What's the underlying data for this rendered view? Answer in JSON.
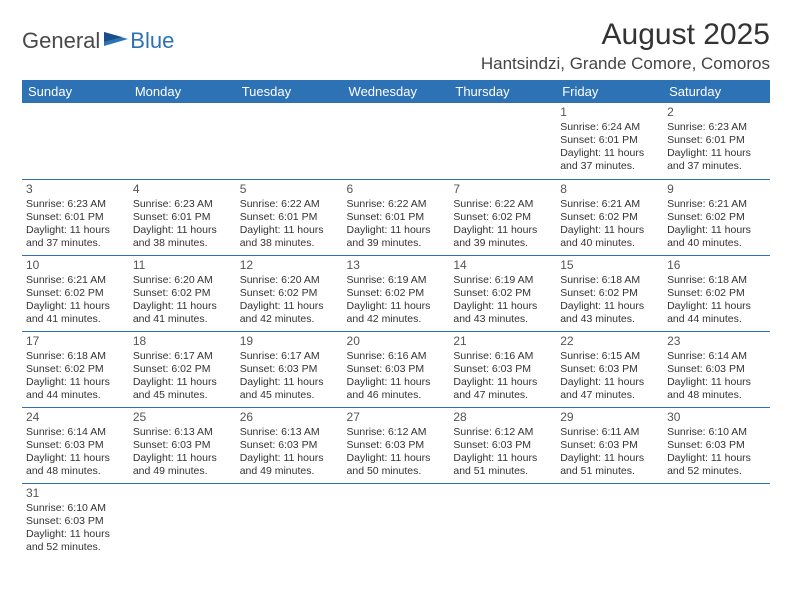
{
  "logo": {
    "part1": "General",
    "part2": "Blue"
  },
  "header": {
    "title": "August 2025",
    "location": "Hantsindzi, Grande Comore, Comoros"
  },
  "colors": {
    "header_bg": "#2d72b5",
    "header_text": "#ffffff",
    "cell_border": "#2d72b5",
    "text": "#333333",
    "logo_gray": "#4a4a4a",
    "logo_blue": "#2d72b5"
  },
  "fonts": {
    "title_size": 30,
    "location_size": 17,
    "dayheader_size": 13,
    "cell_size": 10.5,
    "daynum_size": 12
  },
  "calendar": {
    "type": "table",
    "columns": [
      "Sunday",
      "Monday",
      "Tuesday",
      "Wednesday",
      "Thursday",
      "Friday",
      "Saturday"
    ],
    "rows": [
      [
        null,
        null,
        null,
        null,
        null,
        {
          "d": "1",
          "sr": "6:24 AM",
          "ss": "6:01 PM",
          "dl": "11 hours and 37 minutes."
        },
        {
          "d": "2",
          "sr": "6:23 AM",
          "ss": "6:01 PM",
          "dl": "11 hours and 37 minutes."
        }
      ],
      [
        {
          "d": "3",
          "sr": "6:23 AM",
          "ss": "6:01 PM",
          "dl": "11 hours and 37 minutes."
        },
        {
          "d": "4",
          "sr": "6:23 AM",
          "ss": "6:01 PM",
          "dl": "11 hours and 38 minutes."
        },
        {
          "d": "5",
          "sr": "6:22 AM",
          "ss": "6:01 PM",
          "dl": "11 hours and 38 minutes."
        },
        {
          "d": "6",
          "sr": "6:22 AM",
          "ss": "6:01 PM",
          "dl": "11 hours and 39 minutes."
        },
        {
          "d": "7",
          "sr": "6:22 AM",
          "ss": "6:02 PM",
          "dl": "11 hours and 39 minutes."
        },
        {
          "d": "8",
          "sr": "6:21 AM",
          "ss": "6:02 PM",
          "dl": "11 hours and 40 minutes."
        },
        {
          "d": "9",
          "sr": "6:21 AM",
          "ss": "6:02 PM",
          "dl": "11 hours and 40 minutes."
        }
      ],
      [
        {
          "d": "10",
          "sr": "6:21 AM",
          "ss": "6:02 PM",
          "dl": "11 hours and 41 minutes."
        },
        {
          "d": "11",
          "sr": "6:20 AM",
          "ss": "6:02 PM",
          "dl": "11 hours and 41 minutes."
        },
        {
          "d": "12",
          "sr": "6:20 AM",
          "ss": "6:02 PM",
          "dl": "11 hours and 42 minutes."
        },
        {
          "d": "13",
          "sr": "6:19 AM",
          "ss": "6:02 PM",
          "dl": "11 hours and 42 minutes."
        },
        {
          "d": "14",
          "sr": "6:19 AM",
          "ss": "6:02 PM",
          "dl": "11 hours and 43 minutes."
        },
        {
          "d": "15",
          "sr": "6:18 AM",
          "ss": "6:02 PM",
          "dl": "11 hours and 43 minutes."
        },
        {
          "d": "16",
          "sr": "6:18 AM",
          "ss": "6:02 PM",
          "dl": "11 hours and 44 minutes."
        }
      ],
      [
        {
          "d": "17",
          "sr": "6:18 AM",
          "ss": "6:02 PM",
          "dl": "11 hours and 44 minutes."
        },
        {
          "d": "18",
          "sr": "6:17 AM",
          "ss": "6:02 PM",
          "dl": "11 hours and 45 minutes."
        },
        {
          "d": "19",
          "sr": "6:17 AM",
          "ss": "6:03 PM",
          "dl": "11 hours and 45 minutes."
        },
        {
          "d": "20",
          "sr": "6:16 AM",
          "ss": "6:03 PM",
          "dl": "11 hours and 46 minutes."
        },
        {
          "d": "21",
          "sr": "6:16 AM",
          "ss": "6:03 PM",
          "dl": "11 hours and 47 minutes."
        },
        {
          "d": "22",
          "sr": "6:15 AM",
          "ss": "6:03 PM",
          "dl": "11 hours and 47 minutes."
        },
        {
          "d": "23",
          "sr": "6:14 AM",
          "ss": "6:03 PM",
          "dl": "11 hours and 48 minutes."
        }
      ],
      [
        {
          "d": "24",
          "sr": "6:14 AM",
          "ss": "6:03 PM",
          "dl": "11 hours and 48 minutes."
        },
        {
          "d": "25",
          "sr": "6:13 AM",
          "ss": "6:03 PM",
          "dl": "11 hours and 49 minutes."
        },
        {
          "d": "26",
          "sr": "6:13 AM",
          "ss": "6:03 PM",
          "dl": "11 hours and 49 minutes."
        },
        {
          "d": "27",
          "sr": "6:12 AM",
          "ss": "6:03 PM",
          "dl": "11 hours and 50 minutes."
        },
        {
          "d": "28",
          "sr": "6:12 AM",
          "ss": "6:03 PM",
          "dl": "11 hours and 51 minutes."
        },
        {
          "d": "29",
          "sr": "6:11 AM",
          "ss": "6:03 PM",
          "dl": "11 hours and 51 minutes."
        },
        {
          "d": "30",
          "sr": "6:10 AM",
          "ss": "6:03 PM",
          "dl": "11 hours and 52 minutes."
        }
      ],
      [
        {
          "d": "31",
          "sr": "6:10 AM",
          "ss": "6:03 PM",
          "dl": "11 hours and 52 minutes."
        },
        null,
        null,
        null,
        null,
        null,
        null
      ]
    ],
    "labels": {
      "sunrise": "Sunrise:",
      "sunset": "Sunset:",
      "daylight": "Daylight:"
    }
  }
}
